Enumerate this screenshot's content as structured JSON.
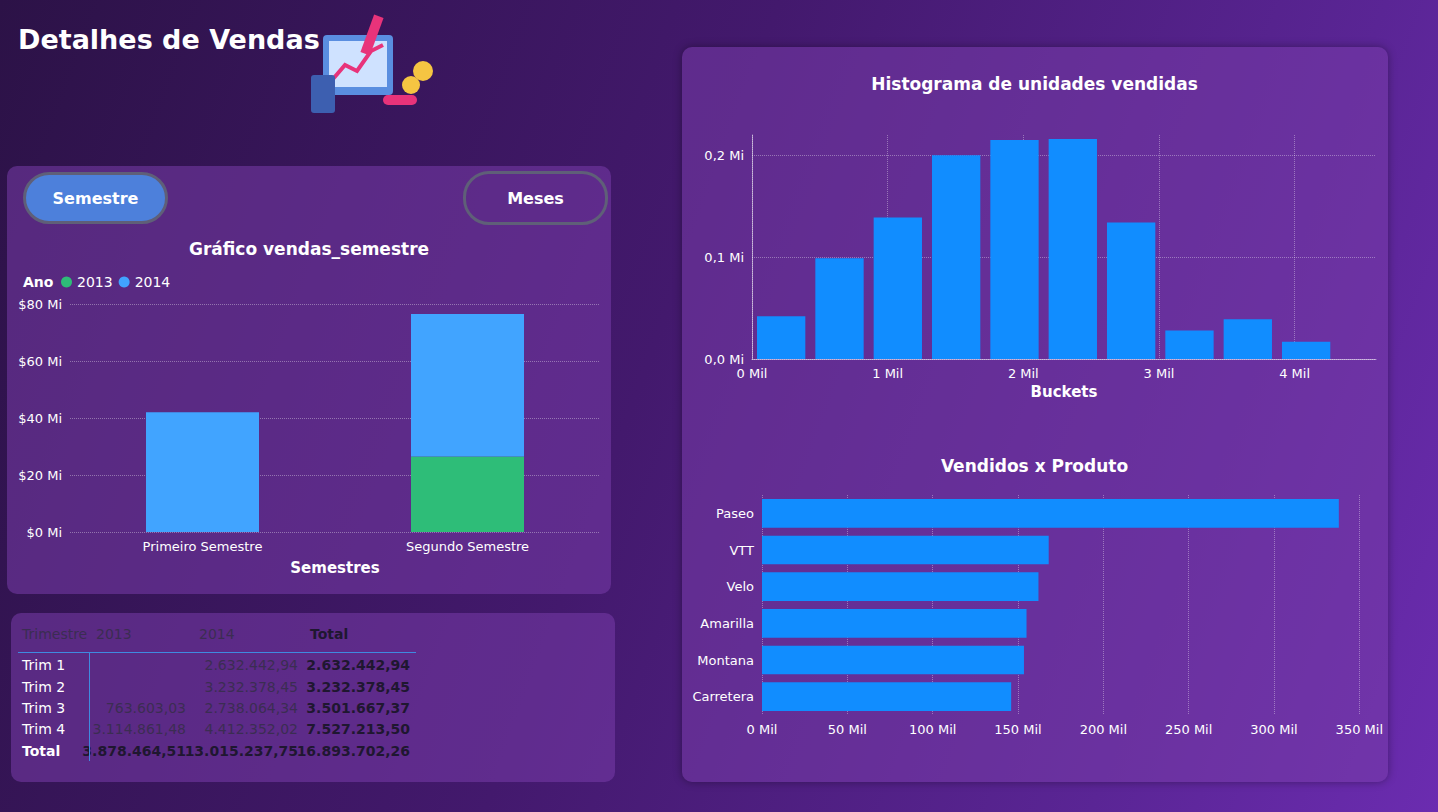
{
  "header": {
    "title": "Detalhes de Vendas"
  },
  "buttons": [
    {
      "label": "Semestre",
      "selected": true
    },
    {
      "label": "Meses",
      "selected": false
    }
  ],
  "chart_data": [
    {
      "type": "bar",
      "title": "Gráfico vendas_semestre",
      "legend_title": "Ano",
      "legend": "top-left",
      "stacked": true,
      "grid": true,
      "xlabel": "Semestres",
      "categories": [
        "Primeiro Semestre",
        "Segundo Semestre"
      ],
      "series": [
        {
          "name": "2013",
          "color": "#2ebd78",
          "values": [
            null,
            26.5
          ]
        },
        {
          "name": "2014",
          "color": "#41a4ff",
          "values": [
            42,
            50
          ]
        }
      ],
      "ylim": [
        0,
        80
      ],
      "yticks": [
        {
          "value": 0,
          "label": "$0 Mi"
        },
        {
          "value": 20,
          "label": "$20 Mi"
        },
        {
          "value": 40,
          "label": "$40 Mi"
        },
        {
          "value": 60,
          "label": "$60 Mi"
        },
        {
          "value": 80,
          "label": "$80 Mi"
        }
      ]
    },
    {
      "type": "histogram",
      "title": "Histograma de unidades vendidas",
      "xlabel": "Buckets",
      "grid": true,
      "color": "#118dff",
      "bins": [
        0,
        0.43,
        0.86,
        1.29,
        1.72,
        2.15,
        2.58,
        3.01,
        3.44,
        3.87,
        4.3
      ],
      "values": [
        0.042,
        0.099,
        0.139,
        0.2,
        0.215,
        0.216,
        0.134,
        0.028,
        0.039,
        0.017
      ],
      "xlim": [
        0,
        4.6
      ],
      "xticks": [
        {
          "value": 0,
          "label": "0 Mil"
        },
        {
          "value": 1,
          "label": "1 Mil"
        },
        {
          "value": 2,
          "label": "2 Mil"
        },
        {
          "value": 3,
          "label": "3 Mil"
        },
        {
          "value": 4,
          "label": "4 Mil"
        }
      ],
      "ylim": [
        0,
        0.22
      ],
      "yticks": [
        {
          "value": 0,
          "label": "0,0 Mi"
        },
        {
          "value": 0.1,
          "label": "0,1 Mi"
        },
        {
          "value": 0.2,
          "label": "0,2 Mi"
        }
      ]
    },
    {
      "type": "bar",
      "orientation": "horizontal",
      "title": "Vendidos x Produto",
      "grid": true,
      "color": "#118dff",
      "categories": [
        "Paseo",
        "VTT",
        "Velo",
        "Amarilla",
        "Montana",
        "Carretera"
      ],
      "values": [
        338,
        168,
        162,
        155,
        153.5,
        146
      ],
      "xlim": [
        0,
        350
      ],
      "xticks": [
        {
          "value": 0,
          "label": "0 Mil"
        },
        {
          "value": 50,
          "label": "50 Mil"
        },
        {
          "value": 100,
          "label": "100 Mil"
        },
        {
          "value": 150,
          "label": "150 Mil"
        },
        {
          "value": 200,
          "label": "200 Mil"
        },
        {
          "value": 250,
          "label": "250 Mil"
        },
        {
          "value": 300,
          "label": "300 Mil"
        },
        {
          "value": 350,
          "label": "350 Mil"
        }
      ]
    }
  ],
  "table": {
    "header": [
      "Trimestre",
      "2013",
      "2014",
      "Total"
    ],
    "rows": [
      [
        "Trim 1",
        null,
        "2.632.442,94",
        "2.632.442,94"
      ],
      [
        "Trim 2",
        null,
        "3.232.378,45",
        "3.232.378,45"
      ],
      [
        "Trim 3",
        "763.603,03",
        "2.738.064,34",
        "3.501.667,37"
      ],
      [
        "Trim 4",
        "3.114.861,48",
        "4.412.352,02",
        "7.527.213,50"
      ]
    ],
    "total": [
      "Total",
      "3.878.464,51",
      "13.015.237,75",
      "16.893.702,26"
    ]
  }
}
